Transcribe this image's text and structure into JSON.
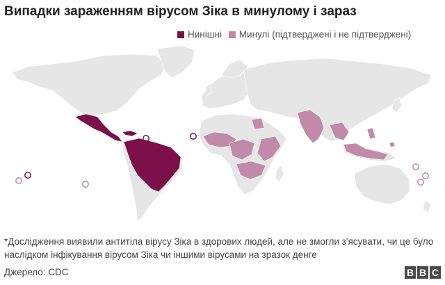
{
  "title": "Випадки зараженням вірусом Зіка в минулому і зараз",
  "legend": [
    {
      "label": "Нинішні",
      "color": "#7a0f4a"
    },
    {
      "label": "Минулі (підтверджені і не підтверджені)",
      "color": "#c08aa8"
    }
  ],
  "colors": {
    "land": "#e6e6e6",
    "current": "#7a0f4a",
    "past": "#c08aa8"
  },
  "footnote": "*Дослідження виявили антитіла вірусу Зіка в здорових людей, але не змогли з'ясувати, чи це було наслідком інфікування вірусом Зіка чи іншими вірусами на зразок денге",
  "source": "Джерело: CDC",
  "logo_letters": [
    "B",
    "B",
    "C"
  ]
}
